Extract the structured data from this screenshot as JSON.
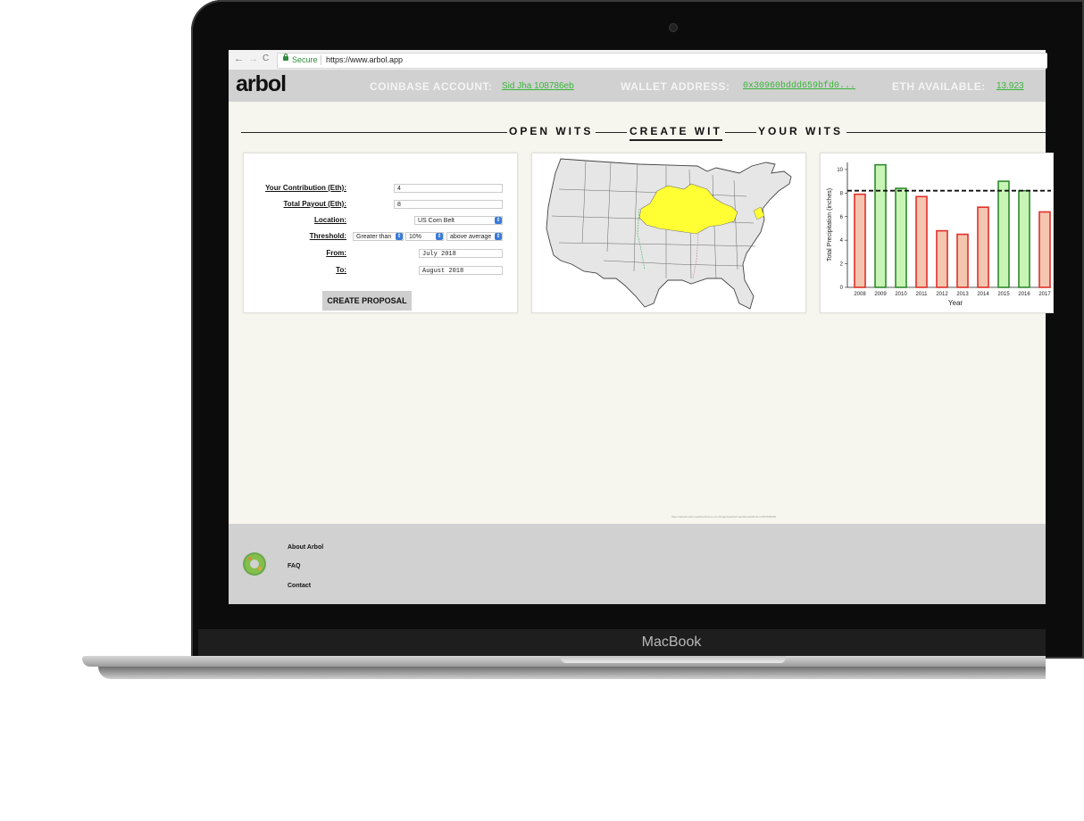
{
  "device": {
    "brand_label": "MacBook"
  },
  "browser": {
    "nav_back": "←",
    "nav_forward": "→",
    "nav_reload": "C",
    "secure_label": "Secure",
    "url": "https://www.arbol.app"
  },
  "header": {
    "logo": "arbol",
    "coinbase_label": "COINBASE ACCOUNT:",
    "coinbase_value": "Sid Jha 108786eb",
    "wallet_label": "WALLET ADDRESS:",
    "wallet_value": "0x30960bddd659bfd0...",
    "eth_label": "ETH AVAILABLE:",
    "eth_value": "13.923"
  },
  "tabs": [
    {
      "label": "OPEN WITS",
      "active": false
    },
    {
      "label": "CREATE WIT",
      "active": true
    },
    {
      "label": "YOUR WITS",
      "active": false
    }
  ],
  "form": {
    "contribution_label": "Your Contribution (Eth):",
    "contribution_value": "4",
    "payout_label": "Total Payout (Eth):",
    "payout_value": "8",
    "location_label": "Location:",
    "location_value": "US Corn Belt",
    "threshold_label": "Threshold:",
    "threshold_comparator": "Greater than",
    "threshold_percent": "10%",
    "threshold_reference": "above average",
    "from_label": "From:",
    "from_value": "July 2018",
    "to_label": "To:",
    "to_value": "August 2018",
    "submit_label": "CREATE PROPOSAL"
  },
  "map": {
    "highlight_color": "#ffff33",
    "region": "US Corn Belt"
  },
  "chart_data": {
    "type": "bar",
    "categories": [
      "2008",
      "2009",
      "2010",
      "2011",
      "2012",
      "2013",
      "2014",
      "2015",
      "2016",
      "2017"
    ],
    "values": [
      7.9,
      10.4,
      8.4,
      7.7,
      4.8,
      4.5,
      6.8,
      9.0,
      8.2,
      6.4
    ],
    "above_threshold": [
      false,
      true,
      true,
      false,
      false,
      false,
      false,
      true,
      true,
      false
    ],
    "threshold": 8.2,
    "xlabel": "Year",
    "ylabel": "Total Precipitation (inches)",
    "ylim": [
      0,
      10.6
    ],
    "yticks": [
      0,
      2,
      4,
      6,
      8,
      10
    ],
    "colors": {
      "below_fill": "#f4c6b0",
      "below_stroke": "#e0302a",
      "above_fill": "#c8f5b5",
      "above_stroke": "#2e8b2e"
    }
  },
  "footer": {
    "links": [
      "About Arbol",
      "FAQ",
      "Contact"
    ],
    "fine_print": "https://arbolmarket.weatherwitness.com/image/weather/sandbox/attribution/1807000000"
  }
}
